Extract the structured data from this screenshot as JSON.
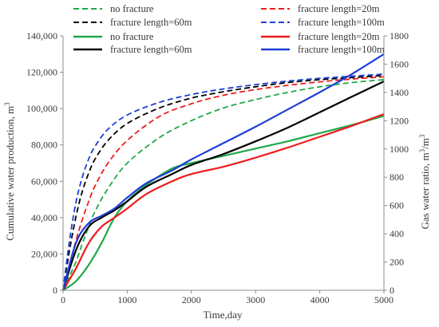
{
  "chart_data": {
    "type": "line",
    "xlabel": "Time,day",
    "ylabel": "Cumulative water production, m",
    "ylabel_superscript": "3",
    "y2label": "Gas water ratio, m",
    "y2label_superscript1": "3",
    "y2label_mid": "/m",
    "y2label_superscript2": "3",
    "xlim": [
      0,
      5000
    ],
    "ylim": [
      0,
      140000
    ],
    "y2lim": [
      0,
      1800
    ],
    "x_ticks": [
      "0",
      "1000",
      "2000",
      "3000",
      "4000",
      "5000"
    ],
    "y_ticks": [
      "0",
      "20,000",
      "40,000",
      "60,000",
      "80,000",
      "100,000",
      "120,000",
      "140,000"
    ],
    "y2_ticks": [
      "0",
      "200",
      "400",
      "600",
      "800",
      "1000",
      "1200",
      "1400",
      "1600",
      "1800"
    ],
    "grid": false,
    "legend_position": "top",
    "series": [
      {
        "name": "no fracture",
        "axis": "y2",
        "style": "dashed",
        "color": "#21a84a",
        "points": [
          [
            0,
            0
          ],
          [
            100,
            100
          ],
          [
            200,
            200
          ],
          [
            300,
            330
          ],
          [
            400,
            450
          ],
          [
            500,
            560
          ],
          [
            700,
            720
          ],
          [
            1000,
            900
          ],
          [
            1500,
            1080
          ],
          [
            2000,
            1200
          ],
          [
            2500,
            1290
          ],
          [
            3000,
            1350
          ],
          [
            3500,
            1400
          ],
          [
            4000,
            1440
          ],
          [
            4500,
            1470
          ],
          [
            5000,
            1490
          ]
        ]
      },
      {
        "name": "fracture length=20m",
        "axis": "y2",
        "style": "dashed",
        "color": "#ee1c1c",
        "points": [
          [
            0,
            0
          ],
          [
            100,
            180
          ],
          [
            200,
            350
          ],
          [
            300,
            500
          ],
          [
            400,
            630
          ],
          [
            500,
            740
          ],
          [
            700,
            900
          ],
          [
            1000,
            1060
          ],
          [
            1500,
            1230
          ],
          [
            2000,
            1320
          ],
          [
            2500,
            1380
          ],
          [
            3000,
            1420
          ],
          [
            3500,
            1450
          ],
          [
            4000,
            1475
          ],
          [
            4500,
            1495
          ],
          [
            5000,
            1510
          ]
        ]
      },
      {
        "name": "fracture length=60m",
        "axis": "y2",
        "style": "dashed",
        "color": "#000000",
        "points": [
          [
            0,
            0
          ],
          [
            100,
            280
          ],
          [
            200,
            520
          ],
          [
            300,
            700
          ],
          [
            400,
            830
          ],
          [
            500,
            930
          ],
          [
            700,
            1060
          ],
          [
            1000,
            1180
          ],
          [
            1500,
            1290
          ],
          [
            2000,
            1360
          ],
          [
            2500,
            1405
          ],
          [
            3000,
            1440
          ],
          [
            3500,
            1470
          ],
          [
            4000,
            1490
          ],
          [
            4500,
            1505
          ],
          [
            5000,
            1520
          ]
        ]
      },
      {
        "name": "fracture length=100m",
        "axis": "y2",
        "style": "dashed",
        "color": "#1f3fd6",
        "points": [
          [
            0,
            0
          ],
          [
            100,
            350
          ],
          [
            200,
            620
          ],
          [
            300,
            800
          ],
          [
            400,
            930
          ],
          [
            500,
            1020
          ],
          [
            700,
            1140
          ],
          [
            1000,
            1240
          ],
          [
            1500,
            1330
          ],
          [
            2000,
            1385
          ],
          [
            2500,
            1425
          ],
          [
            3000,
            1455
          ],
          [
            3500,
            1480
          ],
          [
            4000,
            1500
          ],
          [
            4500,
            1515
          ],
          [
            5000,
            1530
          ]
        ]
      },
      {
        "name": "no fracture",
        "axis": "y",
        "style": "solid",
        "color": "#21a84a",
        "points": [
          [
            0,
            0
          ],
          [
            200,
            5000
          ],
          [
            400,
            14000
          ],
          [
            600,
            26000
          ],
          [
            800,
            40000
          ],
          [
            1000,
            49000
          ],
          [
            1300,
            58000
          ],
          [
            1700,
            67000
          ],
          [
            2000,
            70000
          ],
          [
            2500,
            74000
          ],
          [
            3000,
            78000
          ],
          [
            3500,
            82000
          ],
          [
            4000,
            86500
          ],
          [
            4500,
            91000
          ],
          [
            5000,
            96000
          ]
        ]
      },
      {
        "name": "fracture length=20m",
        "axis": "y",
        "style": "solid",
        "color": "#ee1c1c",
        "points": [
          [
            0,
            0
          ],
          [
            200,
            12000
          ],
          [
            400,
            26000
          ],
          [
            600,
            35000
          ],
          [
            800,
            40000
          ],
          [
            1000,
            45000
          ],
          [
            1300,
            53000
          ],
          [
            1700,
            60000
          ],
          [
            2000,
            64000
          ],
          [
            2500,
            68000
          ],
          [
            3000,
            73000
          ],
          [
            3500,
            78500
          ],
          [
            4000,
            84500
          ],
          [
            4500,
            90500
          ],
          [
            5000,
            97000
          ]
        ]
      },
      {
        "name": "fracture length=60m",
        "axis": "y",
        "style": "solid",
        "color": "#000000",
        "points": [
          [
            0,
            0
          ],
          [
            200,
            22000
          ],
          [
            400,
            35000
          ],
          [
            600,
            40000
          ],
          [
            800,
            44000
          ],
          [
            1000,
            49000
          ],
          [
            1300,
            57000
          ],
          [
            1700,
            64000
          ],
          [
            2000,
            69000
          ],
          [
            2500,
            75000
          ],
          [
            3000,
            82000
          ],
          [
            3500,
            89500
          ],
          [
            4000,
            98000
          ],
          [
            4500,
            106500
          ],
          [
            5000,
            115000
          ]
        ]
      },
      {
        "name": "fracture length=100m",
        "axis": "y",
        "style": "solid",
        "color": "#1f3fd6",
        "points": [
          [
            0,
            0
          ],
          [
            200,
            26000
          ],
          [
            400,
            37000
          ],
          [
            600,
            41000
          ],
          [
            800,
            45000
          ],
          [
            1000,
            51000
          ],
          [
            1300,
            59000
          ],
          [
            1700,
            66000
          ],
          [
            2000,
            72000
          ],
          [
            2500,
            81000
          ],
          [
            3000,
            90000
          ],
          [
            3500,
            99500
          ],
          [
            4000,
            109000
          ],
          [
            4500,
            119000
          ],
          [
            5000,
            130000
          ]
        ]
      }
    ]
  }
}
